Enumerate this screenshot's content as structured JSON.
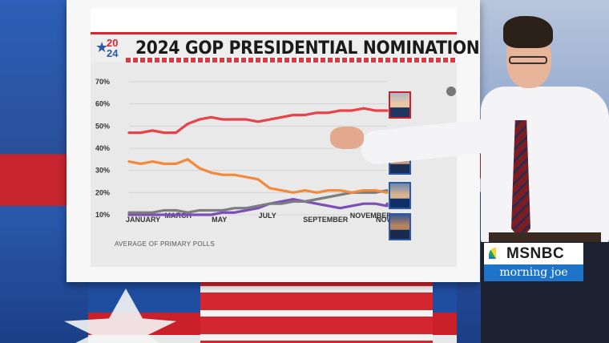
{
  "header": {
    "logo_top": "20",
    "logo_bottom": "24",
    "title": "2024 GOP PRESIDENTIAL NOMINATION"
  },
  "footnote": "AVERAGE OF PRIMARY POLLS",
  "network": {
    "name": "MSNBC",
    "show": "morning joe"
  },
  "colors": {
    "trump": "#e8434a",
    "desantis": "#f28a3c",
    "haley": "#7b7d80",
    "ramaswamy": "#7d4fb6"
  },
  "chart_data": {
    "type": "line",
    "y_ticks": [
      "70%",
      "60%",
      "50%",
      "40%",
      "30%",
      "20%",
      "10%"
    ],
    "x_ticks": [
      "JANUARY",
      "MARCH",
      "MAY",
      "JULY",
      "SEPTEMBER",
      "NOVEMBER",
      "NOW"
    ],
    "ylim": [
      10,
      70
    ],
    "x": [
      0,
      0.5,
      1,
      1.5,
      2,
      2.5,
      3,
      3.5,
      4,
      4.5,
      5,
      5.5,
      6,
      6.5,
      7,
      7.5,
      8,
      8.5,
      9,
      9.5,
      10,
      10.5,
      11,
      11
    ],
    "series": [
      {
        "key": "trump",
        "values": [
          47,
          47,
          48,
          47,
          47,
          51,
          53,
          54,
          53,
          53,
          53,
          52,
          53,
          54,
          55,
          55,
          56,
          56,
          57,
          57,
          58,
          57,
          57,
          57
        ]
      },
      {
        "key": "desantis",
        "values": [
          34,
          33,
          34,
          33,
          33,
          35,
          31,
          29,
          28,
          28,
          27,
          26,
          22,
          21,
          20,
          21,
          20,
          21,
          21,
          20,
          21,
          21,
          20,
          20
        ]
      },
      {
        "key": "haley",
        "values": [
          11,
          11,
          11,
          12,
          12,
          11,
          12,
          12,
          12,
          13,
          13,
          14,
          15,
          15,
          16,
          16,
          17,
          18,
          19,
          20,
          20,
          20,
          21,
          21
        ]
      },
      {
        "key": "ramaswamy",
        "values": [
          10,
          10,
          10,
          10,
          10,
          10,
          10,
          10,
          11,
          11,
          12,
          13,
          15,
          16,
          17,
          16,
          15,
          14,
          13,
          14,
          15,
          15,
          14,
          15
        ]
      }
    ]
  }
}
